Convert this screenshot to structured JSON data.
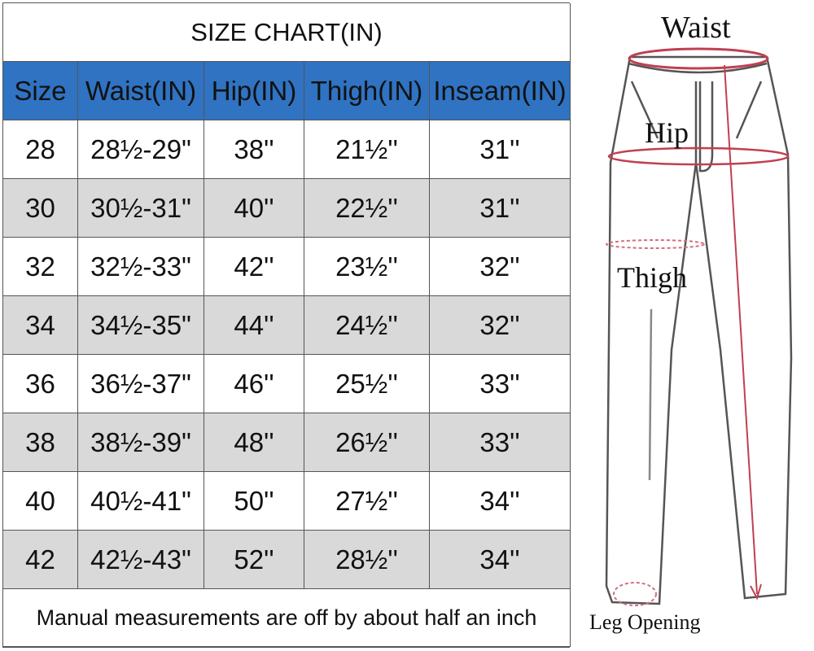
{
  "table": {
    "title": "SIZE CHART(IN)",
    "header": [
      "Size",
      "Waist(IN)",
      "Hip(IN)",
      "Thigh(IN)",
      "Inseam(IN)"
    ],
    "rows": [
      [
        "28",
        "28½-29\"",
        "38''",
        "21½''",
        "31''"
      ],
      [
        "30",
        "30½-31\"",
        "40''",
        "22½''",
        "31''"
      ],
      [
        "32",
        "32½-33\"",
        "42''",
        "23½''",
        "32''"
      ],
      [
        "34",
        "34½-35\"",
        "44''",
        "24½''",
        "32''"
      ],
      [
        "36",
        "36½-37\"",
        "46''",
        "25½''",
        "33''"
      ],
      [
        "38",
        "38½-39\"",
        "48''",
        "26½''",
        "33''"
      ],
      [
        "40",
        "40½-41\"",
        "50''",
        "27½''",
        "34''"
      ],
      [
        "42",
        "42½-43\"",
        "52''",
        "28½''",
        "34''"
      ]
    ],
    "note": "Manual measurements are off by about half an inch"
  },
  "diagram": {
    "labels": [
      "Waist",
      "Hip",
      "Thigh",
      "Leg Opening"
    ]
  }
}
